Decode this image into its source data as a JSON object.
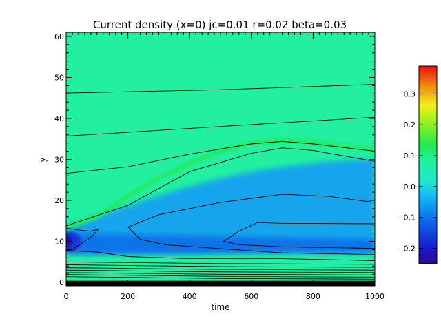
{
  "chart_data": {
    "type": "heatmap",
    "title": "Current density (x=0) jc=0.01 r=0.02 beta=0.03",
    "xlabel": "time",
    "ylabel": "y",
    "xlim": [
      0,
      1000
    ],
    "ylim": [
      -1,
      61
    ],
    "x_ticks": [
      0,
      200,
      400,
      600,
      800,
      1000
    ],
    "y_ticks": [
      0,
      10,
      20,
      30,
      40,
      50,
      60
    ],
    "x_tick_labels": [
      "0",
      "200",
      "400",
      "600",
      "800",
      "1000"
    ],
    "y_tick_labels": [
      "0",
      "10",
      "20",
      "30",
      "40",
      "50",
      "60"
    ],
    "colorbar": {
      "range": [
        -0.25,
        0.39
      ],
      "ticks": [
        -0.2,
        -0.1,
        0.0,
        0.1,
        0.2,
        0.3
      ],
      "tick_labels": [
        "-0.2",
        "-0.1",
        "0.0",
        "0.1",
        "0.2",
        "0.3"
      ],
      "colormap": "rainbow"
    },
    "background_value": 0.0,
    "features": [
      {
        "name": "positive ridge",
        "value": 0.12,
        "path": {
          "t": [
            0,
            100,
            200,
            300,
            400,
            500,
            600,
            700,
            800,
            900,
            1000
          ],
          "y": [
            13.5,
            16,
            21,
            25.5,
            29,
            32,
            34,
            34.7,
            34.2,
            33.3,
            32.5
          ]
        }
      },
      {
        "name": "negative band",
        "value": -0.1,
        "t": [
          0,
          1000
        ],
        "y_center": 9.5
      },
      {
        "name": "negative core",
        "value": -0.24,
        "t": 0,
        "y": 10
      }
    ],
    "contours": [
      {
        "t": [
          0,
          500,
          1000
        ],
        "y": [
          46.2,
          47,
          48.3
        ]
      },
      {
        "t": [
          0,
          600,
          1000
        ],
        "y": [
          35.7,
          38.5,
          40.3
        ]
      },
      {
        "t": [
          0,
          200,
          400,
          600,
          700,
          800,
          1000
        ],
        "y": [
          26.6,
          28.2,
          31.3,
          33.8,
          34.4,
          33.8,
          32
        ]
      },
      {
        "t": [
          0,
          200,
          400,
          600,
          700,
          800,
          1000
        ],
        "y": [
          13.8,
          18.8,
          27,
          31.5,
          32.8,
          32.2,
          29.5
        ]
      }
    ]
  }
}
